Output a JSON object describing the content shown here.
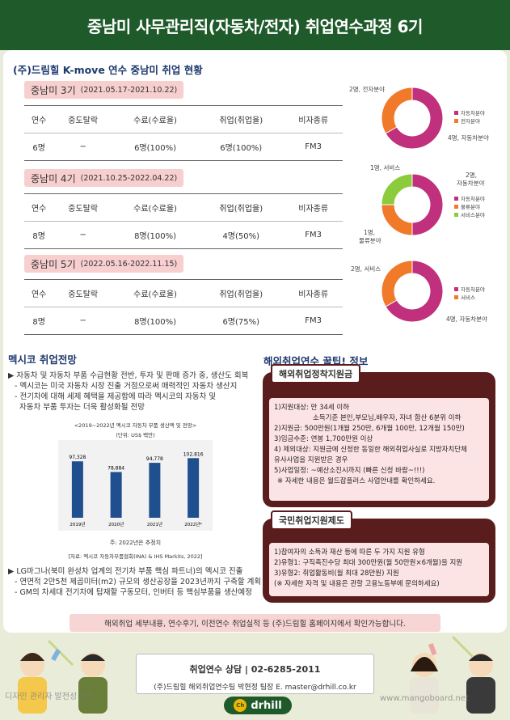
{
  "header": {
    "title": "중남미 사무관리직(자동차/전자) 취업연수과정 6기"
  },
  "status_title": "(주)드림힐 K-move 연수 중남미 취업 현황",
  "table_headers": [
    "연수",
    "중도탈락",
    "수료(수료율)",
    "취업(취업율)",
    "비자종류"
  ],
  "generations": [
    {
      "name": "중남미 3기",
      "range": "(2021.05.17-2021.10.22)",
      "row": [
        "6명",
        "−",
        "6명(100%)",
        "6명(100%)",
        "FM3"
      ]
    },
    {
      "name": "중남미 4기",
      "range": "(2021.10.25-2022.04.22)",
      "row": [
        "8명",
        "−",
        "8명(100%)",
        "4명(50%)",
        "FM3"
      ]
    },
    {
      "name": "중남미 5기",
      "range": "(2022.05.16-2022.11.15)",
      "row": [
        "8명",
        "−",
        "8명(100%)",
        "6명(75%)",
        "FM3"
      ]
    }
  ],
  "donuts": [
    {
      "slices": [
        {
          "value": 4,
          "color": "#c0307c"
        },
        {
          "value": 2,
          "color": "#f07a2a"
        }
      ],
      "labels": [
        "2명, 전자분야",
        "4명, 자동차분야"
      ],
      "legend": [
        "자동차분야",
        "전자분야"
      ]
    },
    {
      "slices": [
        {
          "value": 2,
          "color": "#c0307c"
        },
        {
          "value": 1,
          "color": "#f07a2a"
        },
        {
          "value": 1,
          "color": "#8ccc3c"
        }
      ],
      "labels": [
        "1명, 서비스",
        "2명,",
        "자동차분야",
        "1명,",
        "물류분야"
      ],
      "legend": [
        "자동차분야",
        "물류분야",
        "서비스분야"
      ]
    },
    {
      "slices": [
        {
          "value": 4,
          "color": "#c0307c"
        },
        {
          "value": 2,
          "color": "#f07a2a"
        }
      ],
      "labels": [
        "2명, 서비스",
        "4명, 자동차분야"
      ],
      "legend": [
        "자동차분야",
        "서비스"
      ]
    }
  ],
  "mexico": {
    "title": "멕시코 취업전망",
    "b1": "▶ 자동차 및 자동차 부품 수급현황 전반, 투자 및 판매 증가 중, 생산도 회복",
    "b1a": "- 멕시코는 미국 자동차 시장 진출 거점으로써 매력적인 자동차 생산지",
    "b1b": "- 전기차에 대해 세제 혜택을 제공함에 따라 멕시코의 자동차 및",
    "b1c": "자동차 부품 투자는 더욱 활성화될 전망",
    "b2": "▶ LG마그나(북미 완성차 업계의 전기차 부품 핵심 파트너)의 멕시코 진출",
    "b2a": "- 연면적 2만5천 제곱미터(m2) 규모의 생산공장을 2023년까지 구축할 계획",
    "b2b": "- GM의 차세대 전기차에 탑재할 구동모터, 인버터 등 핵심부품을 생산예정"
  },
  "chart_data": {
    "type": "bar",
    "title": "<2019~2022년 멕시코 자동차 부품 생산액 및 전망>",
    "subtitle": "(단위: US$ 백만)",
    "categories": [
      "2019년",
      "2020년",
      "2021년",
      "2022년*"
    ],
    "values": [
      97328,
      78884,
      94778,
      102816
    ],
    "value_labels": [
      "97,328",
      "78,884",
      "94,778",
      "102,816"
    ],
    "ylim": [
      0,
      120000
    ],
    "note": "주: 2022년은 추정치",
    "source": "[자료: 멕시코 자동차부품협회(INA) & IHS Markits, 2022]",
    "bar_color": "#1f4f8f"
  },
  "tips": {
    "title": "해외취업연수 꿀팁! 정보",
    "box1": {
      "tab": "해외취업정착지원금",
      "lines": [
        "1)지원대상: 만 34세 이하",
        "소득기준 본인,부모님,배우자, 자녀 합산 6분위 이하",
        "2)지원금: 500만원(1개월 250만, 6개월 100만, 12개월 150만)",
        "3)임금수준: 연봉 1,700만원 이상",
        "4) 제외대상: 지원금에 신청한 동일한 해외취업사실로 지방자치단체",
        "유사사업을 지원받은 경우",
        "5)사업일정: ~예산소진시까지 (빠른 신청 바람~!!!)",
        "※ 자세한 내용은 월드잡플러스 사업안내를 확인하세요."
      ]
    },
    "box2": {
      "tab": "국민취업지원제도",
      "lines": [
        "1)참여자의 소득과 재산 등에 따른 두 가지 지원 유형",
        "2)유형1: 구직촉진수당 최대 300만원(월 50만원×6개월)을 지원",
        "3)유형2: 취업활동비(월 최대 28만원) 지원",
        "(※ 자세한 자격 및 내용은 관할 고용노동부에 문의하세요)"
      ]
    }
  },
  "footnote": "해외취업 세부내용, 연수후기, 이전연수 취업실적 등 (주)드림힐 홈페이지에서 확인가능합니다.",
  "contact": {
    "line1": "취업연수 상담  |  02-6285-2011",
    "line2": "(주)드림힐 해외취업연수팀 박현정 팀장  E. master@drhill.co.kr"
  },
  "brand": {
    "name": "drhill",
    "mark": "Ch"
  },
  "watermarks": {
    "left": "디자인 관리자 발전성 코드",
    "right": "www.mangoboard.net"
  }
}
